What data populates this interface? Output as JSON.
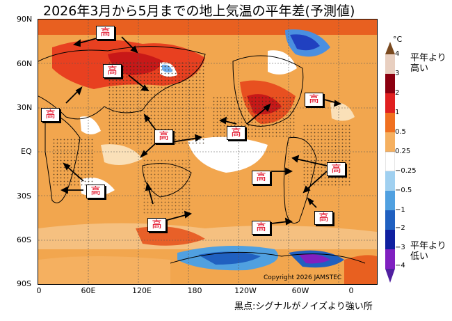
{
  "title": "2026年3月から5月までの地上気温の平年差(予測値)",
  "axes": {
    "lat_labels": [
      "90N",
      "60N",
      "30N",
      "EQ",
      "30S",
      "60S",
      "90S"
    ],
    "lon_labels": [
      "0",
      "60E",
      "120E",
      "180",
      "120W",
      "60W",
      "0"
    ]
  },
  "colorbar": {
    "unit": "°C",
    "ticks": [
      "4",
      "3",
      "2",
      "1",
      "0.5",
      "0.25",
      "−0.25",
      "−0.5",
      "−1",
      "−2",
      "−3",
      "−4"
    ],
    "colors": [
      "#7a4a20",
      "#e8cfc0",
      "#8b0010",
      "#e02020",
      "#f07020",
      "#f5b060",
      "#ffffff",
      "#a0d0f0",
      "#50a0e0",
      "#2060c0",
      "#1020a0",
      "#8020c0",
      "#5020a0"
    ],
    "upper_label_line1": "平年より",
    "upper_label_line2": "高い",
    "lower_label_line1": "平年より",
    "lower_label_line2": "低い"
  },
  "annotation_label": "高",
  "copyright": "Copyright 2026 JAMSTEC",
  "note": "黒点:シグナルがノイズより強い所"
}
